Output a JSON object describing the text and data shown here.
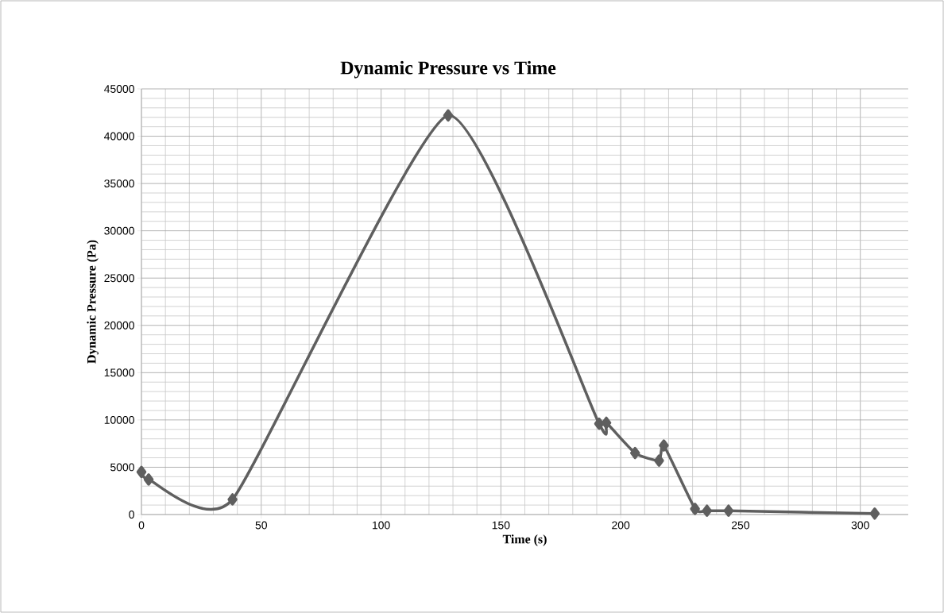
{
  "chart_data": {
    "type": "line",
    "title": "Dynamic Pressure vs Time",
    "xlabel": "Time (s)",
    "ylabel": "Dynamic Pressure (Pa)",
    "x": [
      0,
      3,
      38,
      128,
      191,
      194,
      206,
      216,
      218,
      231,
      236,
      245,
      306
    ],
    "series": [
      {
        "color": "#5f5f5f",
        "values": [
          4500,
          3700,
          1600,
          42200,
          9600,
          9700,
          6500,
          5700,
          7300,
          600,
          400,
          400,
          100
        ]
      }
    ],
    "xlim": [
      0,
      320
    ],
    "xticks": [
      0,
      50,
      100,
      150,
      200,
      250,
      300
    ],
    "ylim": [
      0,
      45000
    ],
    "yticks": [
      0,
      5000,
      10000,
      15000,
      20000,
      25000,
      30000,
      35000,
      40000,
      45000
    ],
    "grid": true,
    "marker": "diamond",
    "line_style": "solid"
  }
}
